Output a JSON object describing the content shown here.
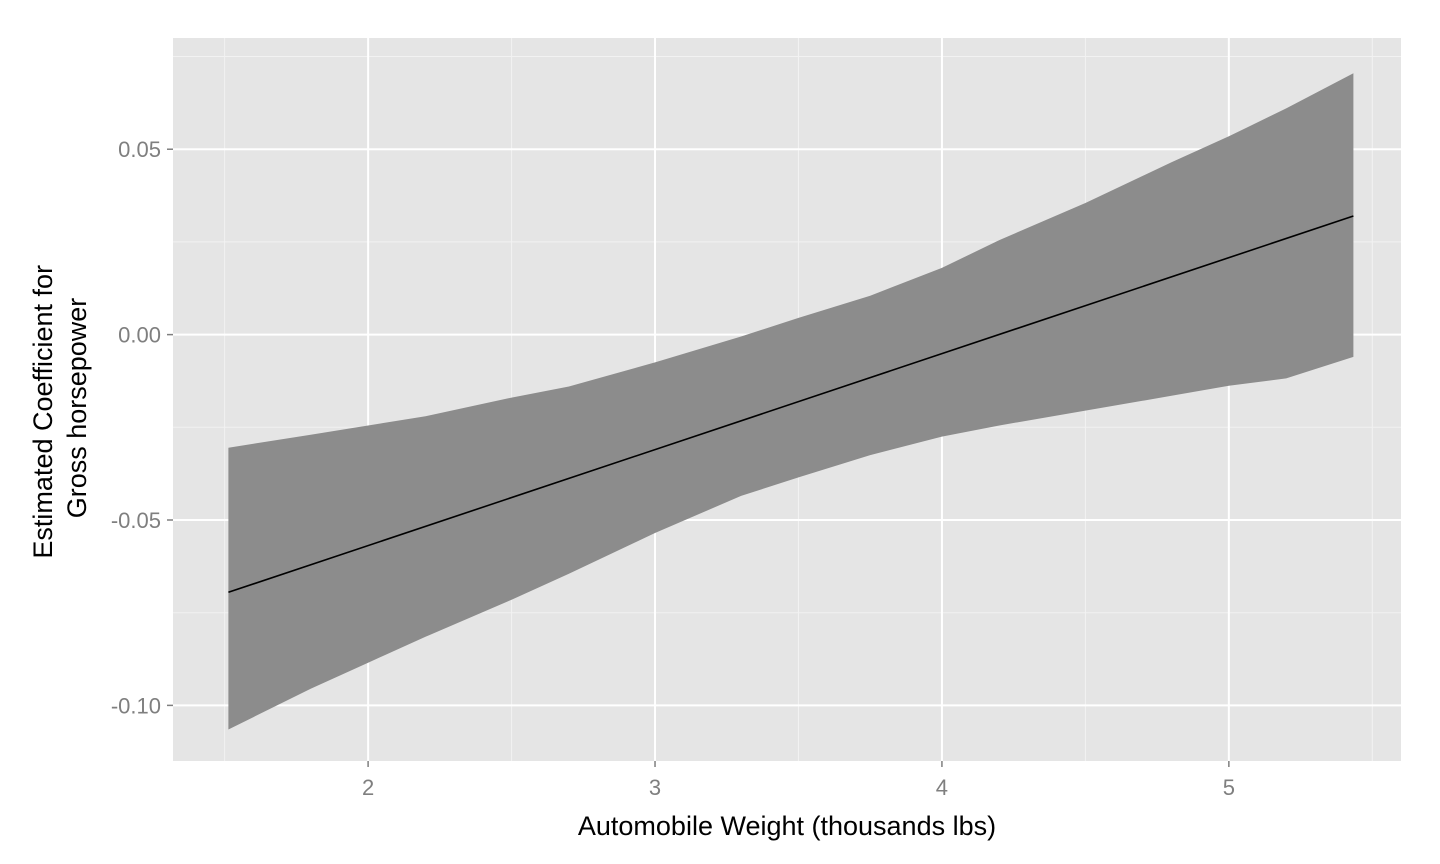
{
  "chart_data": {
    "type": "line",
    "title": "",
    "xlabel": "Automobile Weight (thousands lbs)",
    "ylabel_lines": [
      "Estimated Coefficient for",
      "Gross horsepower"
    ],
    "xlim": [
      1.32,
      5.6
    ],
    "ylim": [
      -0.115,
      0.08
    ],
    "x_ticks": [
      2,
      3,
      4,
      5
    ],
    "x_tick_labels": [
      "2",
      "3",
      "4",
      "5"
    ],
    "x_minor_ticks": [
      1.5,
      2.5,
      3.5,
      4.5,
      5.5
    ],
    "y_ticks": [
      -0.1,
      -0.05,
      0.0,
      0.05
    ],
    "y_tick_labels": [
      "-0.10",
      "-0.05",
      "0.00",
      "0.05"
    ],
    "y_minor_ticks": [
      -0.075,
      -0.025,
      0.025,
      0.075
    ],
    "grid": true,
    "legend": "none",
    "colors": {
      "panel": "#e5e5e5",
      "grid_major": "#ffffff",
      "grid_minor": "#f2f2f2",
      "ribbon": "#8c8c8c",
      "line": "#000000",
      "tick_text": "#7f7f7f",
      "tick_mark": "#7f7f7f"
    },
    "series": [
      {
        "x": [
          1.513,
          5.434
        ],
        "y": [
          -0.0695,
          0.032
        ]
      }
    ],
    "ribbon": {
      "x": [
        1.513,
        1.8,
        2.0,
        2.2,
        2.5,
        2.7,
        3.0,
        3.3,
        3.5,
        3.75,
        4.0,
        4.2,
        4.5,
        4.8,
        5.0,
        5.2,
        5.434
      ],
      "upper": [
        -0.0305,
        -0.027,
        -0.0245,
        -0.022,
        -0.017,
        -0.014,
        -0.0075,
        -0.0005,
        0.0045,
        0.0105,
        0.018,
        0.0255,
        0.0355,
        0.0465,
        0.0535,
        0.061,
        0.0705
      ],
      "lower": [
        -0.1065,
        -0.0955,
        -0.0885,
        -0.0815,
        -0.0715,
        -0.0645,
        -0.0535,
        -0.0435,
        -0.0385,
        -0.0325,
        -0.0275,
        -0.0245,
        -0.0205,
        -0.0165,
        -0.0138,
        -0.0118,
        -0.006
      ]
    }
  }
}
